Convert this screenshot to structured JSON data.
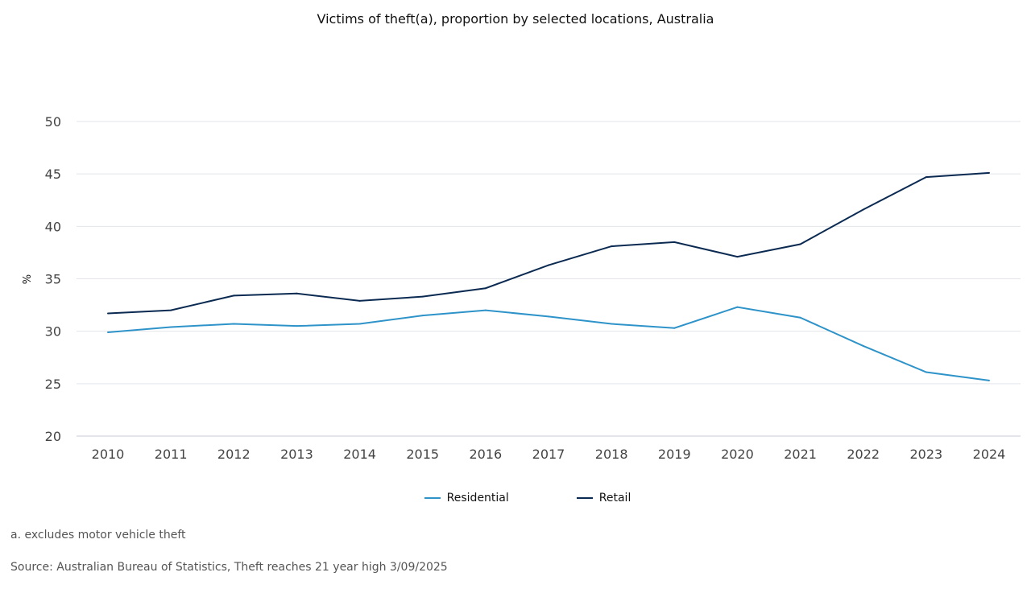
{
  "chart_data": {
    "type": "line",
    "title": "Victims of theft(a), proportion by selected locations, Australia",
    "xlabel": "",
    "ylabel": "%",
    "ylim": [
      20,
      50
    ],
    "yticks": [
      20,
      25,
      30,
      35,
      40,
      45,
      50
    ],
    "grid": true,
    "legend_position": "bottom",
    "categories": [
      "2010",
      "2011",
      "2012",
      "2013",
      "2014",
      "2015",
      "2016",
      "2017",
      "2018",
      "2019",
      "2020",
      "2021",
      "2022",
      "2023",
      "2024"
    ],
    "series": [
      {
        "name": "Residential",
        "color": "#2e93c9",
        "values": [
          29.9,
          30.4,
          30.7,
          30.5,
          30.7,
          31.5,
          32.0,
          31.4,
          30.7,
          30.3,
          32.3,
          31.3,
          28.6,
          26.1,
          25.3
        ]
      },
      {
        "name": "Retail",
        "color": "#0b2a52",
        "values": [
          31.7,
          32.0,
          33.4,
          33.6,
          32.9,
          33.3,
          34.1,
          36.3,
          38.1,
          38.5,
          37.1,
          38.3,
          41.6,
          44.7,
          45.1
        ]
      }
    ]
  },
  "footnote": "a. excludes motor vehicle theft",
  "source": "Source: Australian Bureau of Statistics, Theft reaches 21 year high 3/09/2025"
}
